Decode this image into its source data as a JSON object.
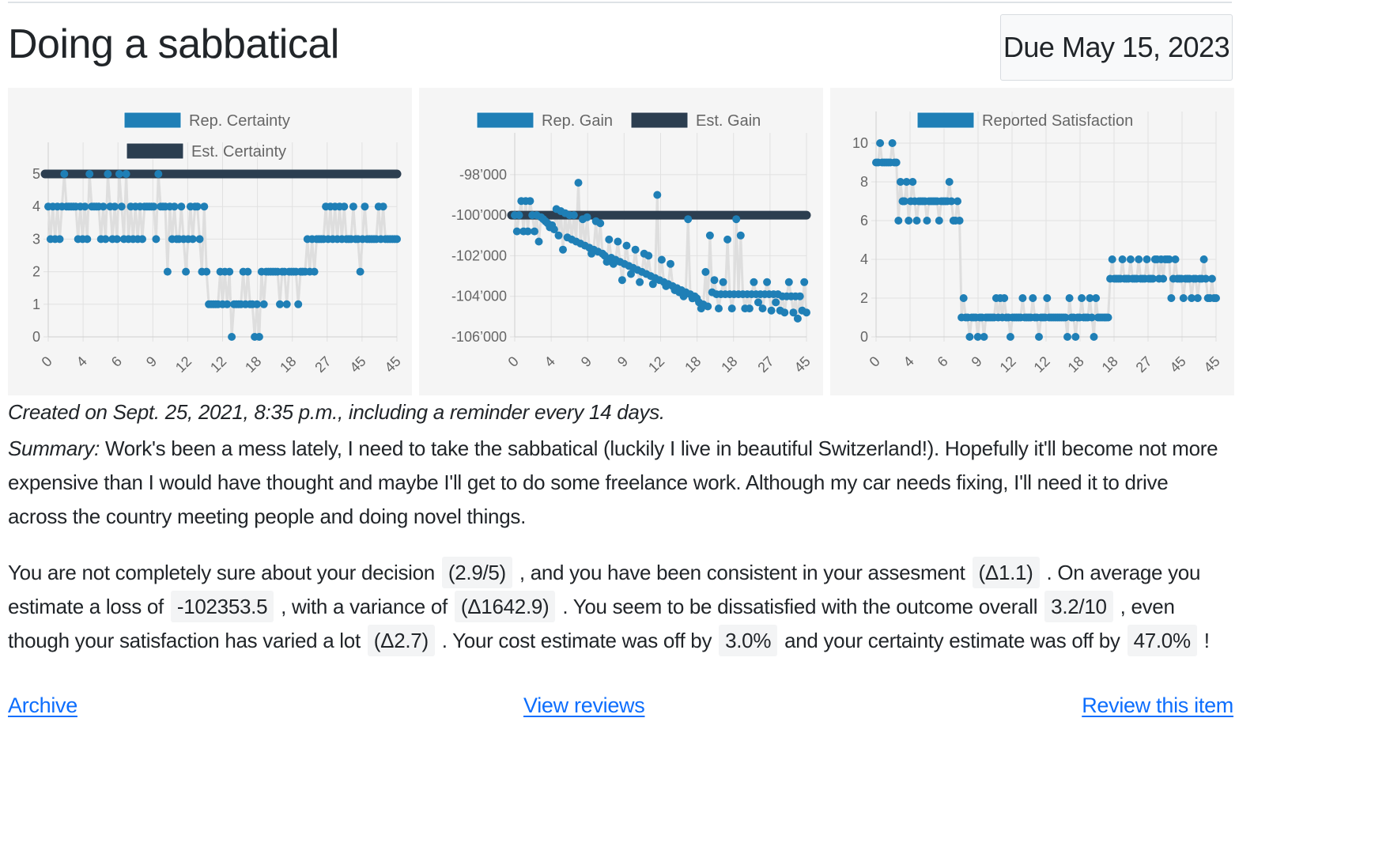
{
  "page": {
    "title": "Doing a sabbatical",
    "due": "Due May 15, 2023",
    "created": "Created on Sept. 25, 2021, 8:35 p.m., including a reminder every 14 days.",
    "summary_label": "Summary:",
    "summary_text": " Work's been a mess lately, I need to take the sabbatical (luckily I live in beautiful Switzerland!). Hopefully it'll become not more expensive than I would have thought and maybe I'll get to do some freelance work. Although my car needs fixing, I'll need it to drive across the country meeting people and doing novel things.",
    "analysis": {
      "t1": "You are not completely sure about your decision ",
      "v1": "(2.9/5)",
      "t2": " , and you have been consistent in your assesment ",
      "v2": "(Δ1.1)",
      "t3": " . On average you estimate a loss of ",
      "v3": "-102353.5",
      "t4": " , with a variance of ",
      "v4": "(Δ1642.9)",
      "t5": " . You seem to be dissatisfied with the outcome overall ",
      "v5": "3.2/10",
      "t6": " , even though your satisfaction has varied a lot ",
      "v6": "(Δ2.7)",
      "t7": " . Your cost estimate was off by ",
      "v7": "3.0%",
      "t8": " and your certainty estimate was off by ",
      "v8": "47.0%",
      "t9": " !"
    },
    "links": {
      "archive": "Archive",
      "view_reviews": "View reviews",
      "review_item": "Review this item"
    }
  },
  "colors": {
    "reported": "#1f7fb6",
    "estimated": "#2c3e50",
    "band": "#dedede",
    "panel_bg": "#f5f5f5",
    "link": "#0d6efd"
  },
  "chart_data": [
    {
      "type": "scatter",
      "title": "",
      "legend": [
        "Rep. Certainty",
        "Est. Certainty"
      ],
      "x_tick_labels": [
        "0",
        "4",
        "6",
        "9",
        "12",
        "12",
        "18",
        "18",
        "27",
        "45",
        "45"
      ],
      "y_ticks": [
        "0",
        "1",
        "2",
        "3",
        "4",
        "5"
      ],
      "ylim": [
        0,
        5
      ],
      "series": [
        {
          "name": "Rep. Certainty",
          "values": [
            4,
            3,
            4,
            3,
            4,
            3,
            4,
            5,
            4,
            4,
            4,
            4,
            4,
            3,
            4,
            3,
            4,
            3,
            5,
            4,
            4,
            4,
            4,
            3,
            4,
            3,
            5,
            4,
            3,
            4,
            3,
            5,
            4,
            3,
            5,
            3,
            4,
            3,
            4,
            3,
            4,
            3,
            4,
            4,
            4,
            4,
            4,
            3,
            5,
            4,
            4,
            4,
            2,
            4,
            3,
            4,
            3,
            3,
            4,
            3,
            2,
            3,
            4,
            3,
            4,
            4,
            3,
            2,
            4,
            2,
            1,
            1,
            1,
            1,
            1,
            2,
            1,
            2,
            1,
            2,
            0,
            1,
            1,
            1,
            1,
            2,
            1,
            2,
            1,
            1,
            0,
            1,
            0,
            2,
            1,
            2,
            2,
            2,
            2,
            2,
            2,
            1,
            2,
            2,
            1,
            2,
            2,
            2,
            2,
            1,
            2,
            2,
            2,
            3,
            2,
            3,
            2,
            3,
            3,
            3,
            3,
            4,
            3,
            4,
            3,
            4,
            3,
            4,
            3,
            4,
            3,
            3,
            3,
            4,
            3,
            3,
            2,
            3,
            4,
            3,
            3,
            3,
            3,
            3,
            4,
            3,
            4,
            3,
            3,
            3,
            3,
            3,
            3
          ]
        },
        {
          "name": "Est. Certainty",
          "values": "constant 5 across all reviews"
        }
      ]
    },
    {
      "type": "scatter",
      "title": "",
      "legend": [
        "Rep. Gain",
        "Est. Gain"
      ],
      "x_tick_labels": [
        "0",
        "4",
        "9",
        "9",
        "12",
        "18",
        "18",
        "27",
        "45"
      ],
      "y_ticks": [
        "-98’000",
        "-100’000",
        "-102’000",
        "-104’000",
        "-106’000"
      ],
      "ylim": [
        -106000,
        -97500
      ],
      "series": [
        {
          "name": "Rep. Gain",
          "values": [
            -100000,
            -100800,
            -100000,
            -99300,
            -100800,
            -99300,
            -100800,
            -99300,
            -100000,
            -100800,
            -100000,
            -101300,
            -100100,
            -100200,
            -100300,
            -100400,
            -100600,
            -100500,
            -100700,
            -99700,
            -101000,
            -99800,
            -101700,
            -99900,
            -101100,
            -100000,
            -101200,
            -100000,
            -101300,
            -98400,
            -101400,
            -100200,
            -101500,
            -100100,
            -101600,
            -101900,
            -101700,
            -100300,
            -101800,
            -100400,
            -101900,
            -102000,
            -102300,
            -101200,
            -102100,
            -102400,
            -102200,
            -101300,
            -102300,
            -103200,
            -102400,
            -101500,
            -102500,
            -102900,
            -102600,
            -101700,
            -102700,
            -103300,
            -102800,
            -101900,
            -102900,
            -102000,
            -103000,
            -103400,
            -103100,
            -99000,
            -103200,
            -102200,
            -103300,
            -103500,
            -103400,
            -102400,
            -103500,
            -103700,
            -103600,
            -103800,
            -103700,
            -104000,
            -103800,
            -100200,
            -103900,
            -104100,
            -104000,
            -104100,
            -104300,
            -104600,
            -104400,
            -102800,
            -104500,
            -101000,
            -103800,
            -103200,
            -103900,
            -104600,
            -103900,
            -103300,
            -103900,
            -101200,
            -103900,
            -104600,
            -103900,
            -100200,
            -103900,
            -101000,
            -103900,
            -104600,
            -103900,
            -104600,
            -103900,
            -103300,
            -103900,
            -104300,
            -103900,
            -104600,
            -103900,
            -103300,
            -103900,
            -104700,
            -103900,
            -104300,
            -103900,
            -104700,
            -104000,
            -104800,
            -104000,
            -103300,
            -104000,
            -104800,
            -104000,
            -105100,
            -104000,
            -104700,
            -103300,
            -104800
          ]
        },
        {
          "name": "Est. Gain",
          "values": "constant -100000 across all reviews"
        }
      ]
    },
    {
      "type": "scatter",
      "title": "",
      "legend": [
        "Reported Satisfaction"
      ],
      "x_tick_labels": [
        "0",
        "4",
        "6",
        "9",
        "12",
        "12",
        "18",
        "18",
        "27",
        "45",
        "45"
      ],
      "y_ticks": [
        "0",
        "2",
        "4",
        "6",
        "8",
        "10"
      ],
      "ylim": [
        0,
        10
      ],
      "series": [
        {
          "name": "Reported Satisfaction",
          "values": [
            9,
            9,
            10,
            9,
            9,
            9,
            9,
            9,
            10,
            9,
            9,
            6,
            8,
            7,
            7,
            8,
            6,
            7,
            8,
            7,
            6,
            7,
            7,
            7,
            7,
            6,
            7,
            7,
            7,
            7,
            7,
            6,
            7,
            7,
            7,
            7,
            8,
            7,
            6,
            6,
            7,
            6,
            1,
            2,
            1,
            1,
            0,
            1,
            1,
            1,
            0,
            1,
            1,
            0,
            1,
            1,
            1,
            1,
            1,
            2,
            1,
            2,
            1,
            2,
            1,
            1,
            0,
            1,
            1,
            1,
            1,
            1,
            2,
            1,
            1,
            1,
            1,
            2,
            1,
            1,
            0,
            1,
            1,
            1,
            2,
            1,
            1,
            1,
            1,
            1,
            1,
            1,
            1,
            1,
            0,
            2,
            1,
            1,
            0,
            1,
            1,
            2,
            1,
            1,
            1,
            2,
            1,
            0,
            2,
            1,
            1,
            1,
            1,
            1,
            1,
            3,
            4,
            3,
            3,
            3,
            3,
            4,
            3,
            3,
            3,
            4,
            3,
            3,
            3,
            4,
            3,
            3,
            3,
            4,
            3,
            3,
            3,
            4,
            4,
            3,
            4,
            3,
            4,
            4,
            4,
            2,
            3,
            4,
            3,
            3,
            3,
            2,
            3,
            3,
            3,
            2,
            3,
            3,
            2,
            3,
            3,
            4,
            3,
            2,
            2,
            3,
            2,
            2
          ]
        }
      ]
    }
  ]
}
